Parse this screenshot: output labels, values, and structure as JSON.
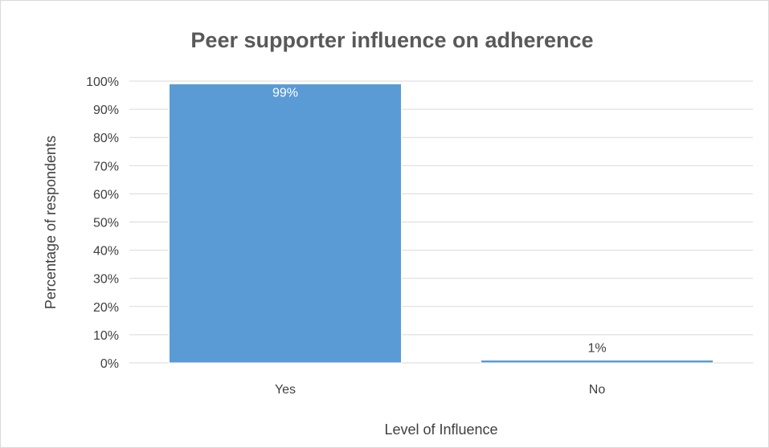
{
  "chart_data": {
    "type": "bar",
    "title": "Peer supporter influence on adherence",
    "xlabel": "Level of Influence",
    "ylabel": "Percentage of respondents",
    "categories": [
      "Yes",
      "No"
    ],
    "values": [
      99,
      1
    ],
    "data_labels": [
      "99%",
      "1%"
    ],
    "ylim": [
      0,
      100
    ],
    "yticks": [
      0,
      10,
      20,
      30,
      40,
      50,
      60,
      70,
      80,
      90,
      100
    ],
    "ytick_labels": [
      "0%",
      "10%",
      "20%",
      "30%",
      "40%",
      "50%",
      "60%",
      "70%",
      "80%",
      "90%",
      "100%"
    ],
    "grid": true,
    "legend": "none",
    "bar_color": "#5b9bd5",
    "gridline_color": "#d9d9d9"
  }
}
